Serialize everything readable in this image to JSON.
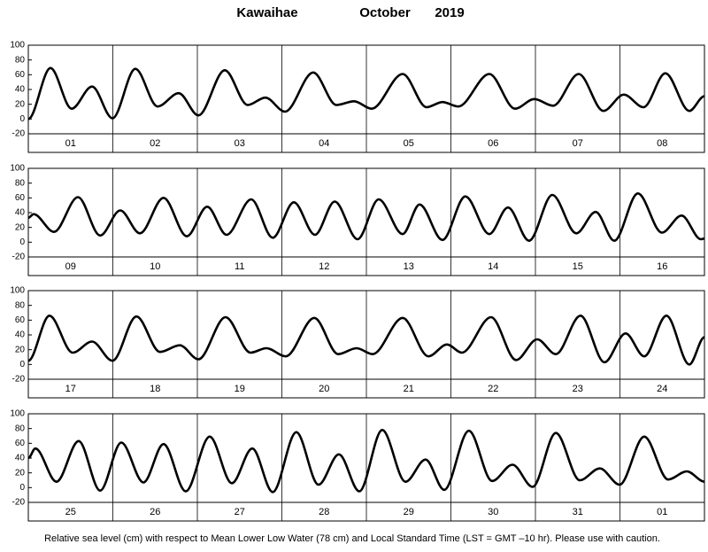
{
  "header": {
    "station": "Kawaihae",
    "month": "October",
    "year": "2019"
  },
  "footnote": "Relative sea level (cm) with respect to Mean Lower Low Water (78 cm) and Local Standard Time (LST = GMT –10 hr). Please use with caution.",
  "chart_data": [
    {
      "type": "line",
      "color": "#000000",
      "xlim": [
        0,
        192
      ],
      "ylim": [
        -20,
        100
      ],
      "yticks": [
        -20,
        0,
        20,
        40,
        60,
        80,
        100
      ],
      "xticks": [
        {
          "value": 12,
          "label": "01"
        },
        {
          "value": 36,
          "label": "02"
        },
        {
          "value": 60,
          "label": "03"
        },
        {
          "value": 84,
          "label": "04"
        },
        {
          "value": 108,
          "label": "05"
        },
        {
          "value": 132,
          "label": "06"
        },
        {
          "value": 156,
          "label": "07"
        },
        {
          "value": 180,
          "label": "08"
        }
      ],
      "day_boundaries": [
        24,
        48,
        72,
        96,
        120,
        144,
        168
      ],
      "x": [
        0,
        6.3,
        12.3,
        18.1,
        23.9,
        30.4,
        36.7,
        42.7,
        48.3,
        55.8,
        62.3,
        67.3,
        72.9,
        80.9,
        87.5,
        92.5,
        97.5,
        106.3,
        113.1,
        117.6,
        122.1,
        130.9,
        138.2,
        143.7,
        149.0,
        156.3,
        163.3,
        169.1,
        174.7,
        180.9,
        187.7,
        192
      ],
      "values": [
        0,
        69,
        14,
        44,
        1,
        68,
        17,
        35,
        5,
        66,
        19,
        29,
        10,
        63,
        19,
        24,
        14,
        61,
        16,
        23,
        17,
        61,
        14,
        27,
        18,
        61,
        11,
        33,
        16,
        62,
        11,
        31
      ]
    },
    {
      "type": "line",
      "color": "#000000",
      "xlim": [
        0,
        192
      ],
      "ylim": [
        -20,
        100
      ],
      "yticks": [
        -20,
        0,
        20,
        40,
        60,
        80,
        100
      ],
      "xticks": [
        {
          "value": 12,
          "label": "09"
        },
        {
          "value": 36,
          "label": "10"
        },
        {
          "value": 60,
          "label": "11"
        },
        {
          "value": 84,
          "label": "12"
        },
        {
          "value": 108,
          "label": "13"
        },
        {
          "value": 132,
          "label": "14"
        },
        {
          "value": 156,
          "label": "15"
        },
        {
          "value": 180,
          "label": "16"
        }
      ],
      "day_boundaries": [
        24,
        48,
        72,
        96,
        120,
        144,
        168
      ],
      "x": [
        0,
        1.5,
        7.3,
        14.1,
        20.4,
        26.1,
        31.7,
        38.4,
        45.0,
        50.8,
        56.3,
        63.3,
        69.4,
        75.4,
        81.4,
        87.0,
        93.5,
        99.5,
        106.3,
        111.1,
        117.6,
        124.1,
        130.9,
        136.2,
        142.2,
        148.8,
        155.6,
        161.1,
        166.4,
        173.1,
        179.9,
        185.5,
        191.0,
        192
      ],
      "values": [
        33,
        38,
        14,
        61,
        9,
        43,
        12,
        60,
        8,
        48,
        10,
        58,
        6,
        54,
        10,
        55,
        4,
        58,
        11,
        51,
        3,
        62,
        11,
        47,
        2,
        64,
        12,
        41,
        2,
        66,
        13,
        36,
        4,
        5
      ]
    },
    {
      "type": "line",
      "color": "#000000",
      "xlim": [
        0,
        192
      ],
      "ylim": [
        -20,
        100
      ],
      "yticks": [
        -20,
        0,
        20,
        40,
        60,
        80,
        100
      ],
      "xticks": [
        {
          "value": 12,
          "label": "17"
        },
        {
          "value": 36,
          "label": "18"
        },
        {
          "value": 60,
          "label": "19"
        },
        {
          "value": 84,
          "label": "20"
        },
        {
          "value": 108,
          "label": "21"
        },
        {
          "value": 132,
          "label": "22"
        },
        {
          "value": 156,
          "label": "23"
        },
        {
          "value": 180,
          "label": "24"
        }
      ],
      "day_boundaries": [
        24,
        48,
        72,
        96,
        120,
        144,
        168
      ],
      "x": [
        0,
        6.0,
        12.6,
        18.1,
        23.9,
        30.7,
        37.4,
        43.0,
        48.3,
        56.0,
        63.1,
        67.6,
        73.1,
        81.2,
        88.0,
        93.2,
        97.8,
        106.3,
        113.6,
        118.9,
        123.1,
        131.4,
        138.5,
        144.5,
        149.8,
        156.8,
        163.6,
        169.6,
        174.9,
        181.2,
        187.7,
        192
      ],
      "values": [
        5,
        66,
        16,
        31,
        5,
        65,
        17,
        26,
        7,
        64,
        16,
        22,
        11,
        63,
        14,
        22,
        14,
        63,
        11,
        27,
        16,
        64,
        6,
        34,
        14,
        66,
        3,
        42,
        11,
        66,
        0,
        37
      ]
    },
    {
      "type": "line",
      "color": "#000000",
      "xlim": [
        0,
        192
      ],
      "ylim": [
        -20,
        100
      ],
      "yticks": [
        -20,
        0,
        20,
        40,
        60,
        80,
        100
      ],
      "xticks": [
        {
          "value": 12,
          "label": "25"
        },
        {
          "value": 36,
          "label": "26"
        },
        {
          "value": 60,
          "label": "27"
        },
        {
          "value": 84,
          "label": "28"
        },
        {
          "value": 108,
          "label": "29"
        },
        {
          "value": 132,
          "label": "30"
        },
        {
          "value": 156,
          "label": "31"
        },
        {
          "value": 180,
          "label": "01"
        }
      ],
      "day_boundaries": [
        24,
        48,
        72,
        96,
        120,
        144,
        168
      ],
      "x": [
        0,
        2.0,
        8.0,
        14.3,
        20.4,
        26.4,
        32.7,
        38.4,
        44.7,
        51.5,
        57.8,
        63.6,
        69.4,
        76.1,
        82.4,
        88.2,
        94.0,
        100.5,
        107.1,
        112.8,
        118.1,
        125.1,
        131.7,
        137.5,
        143.2,
        149.8,
        156.6,
        162.3,
        167.9,
        174.9,
        181.7,
        187.0,
        192
      ],
      "values": [
        40,
        53,
        8,
        63,
        -4,
        61,
        7,
        59,
        -5,
        69,
        6,
        53,
        -6,
        75,
        4,
        45,
        -5,
        78,
        8,
        38,
        -3,
        77,
        9,
        31,
        1,
        74,
        10,
        26,
        4,
        69,
        11,
        22,
        8
      ]
    }
  ]
}
